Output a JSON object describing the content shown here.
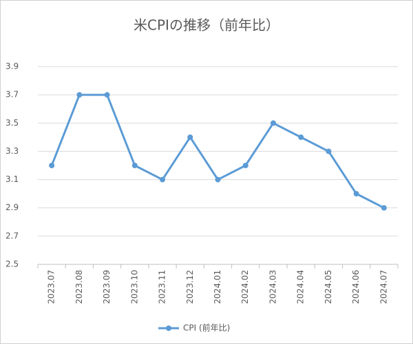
{
  "chart_data": {
    "type": "line",
    "title": "米CPIの推移（前年比）",
    "categories": [
      "2023.07",
      "2023.08",
      "2023.09",
      "2023.10",
      "2023.11",
      "2023.12",
      "2024.01",
      "2024.02",
      "2024.03",
      "2024.04",
      "2024.05",
      "2024.06",
      "2024.07"
    ],
    "series": [
      {
        "name": "CPI (前年比)",
        "color": "#5b9bd5",
        "values": [
          3.2,
          3.7,
          3.7,
          3.2,
          3.1,
          3.4,
          3.1,
          3.2,
          3.5,
          3.4,
          3.3,
          3.0,
          2.9
        ]
      }
    ],
    "ylim": [
      2.5,
      3.9
    ],
    "yticks": [
      2.5,
      2.7,
      2.9,
      3.1,
      3.3,
      3.5,
      3.7,
      3.9
    ],
    "grid": true,
    "legend": "bottom"
  }
}
